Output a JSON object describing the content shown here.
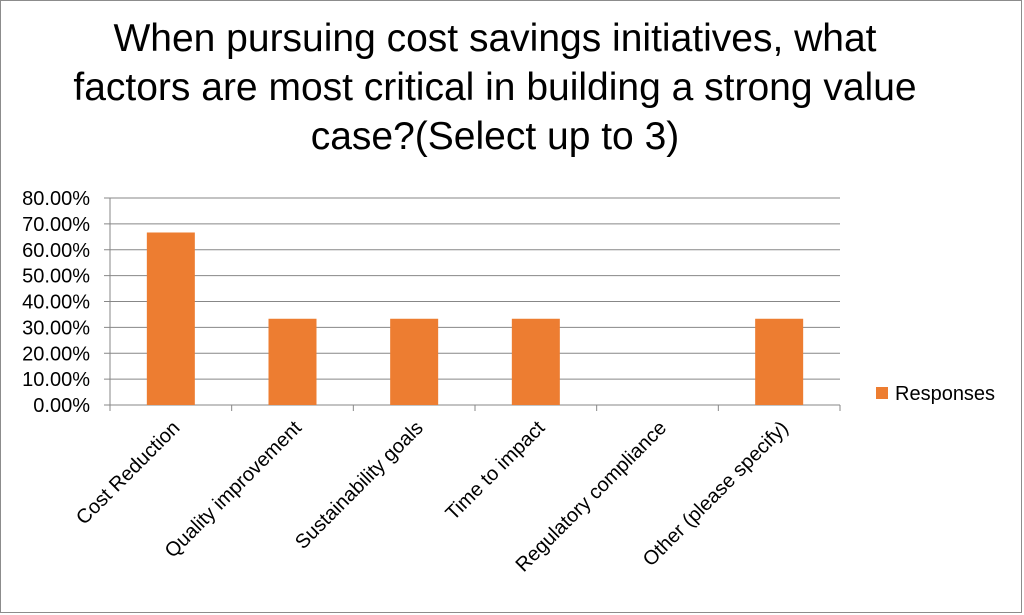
{
  "chart_data": {
    "type": "bar",
    "title": "When pursuing cost savings initiatives, what factors are most critical in building a strong value case?(Select up to 3)",
    "categories": [
      "Cost Reduction",
      "Quality improvement",
      "Sustainability goals",
      "Time to impact",
      "Regulatory compliance",
      "Other (please specify)"
    ],
    "series": [
      {
        "name": "Responses",
        "values": [
          66.67,
          33.33,
          33.33,
          33.33,
          0,
          33.33
        ],
        "color": "#ED7D31"
      }
    ],
    "yticks": [
      "0.00%",
      "10.00%",
      "20.00%",
      "30.00%",
      "40.00%",
      "50.00%",
      "60.00%",
      "70.00%",
      "80.00%"
    ],
    "ylim": [
      0,
      80
    ],
    "grid": true,
    "legend": "right"
  }
}
